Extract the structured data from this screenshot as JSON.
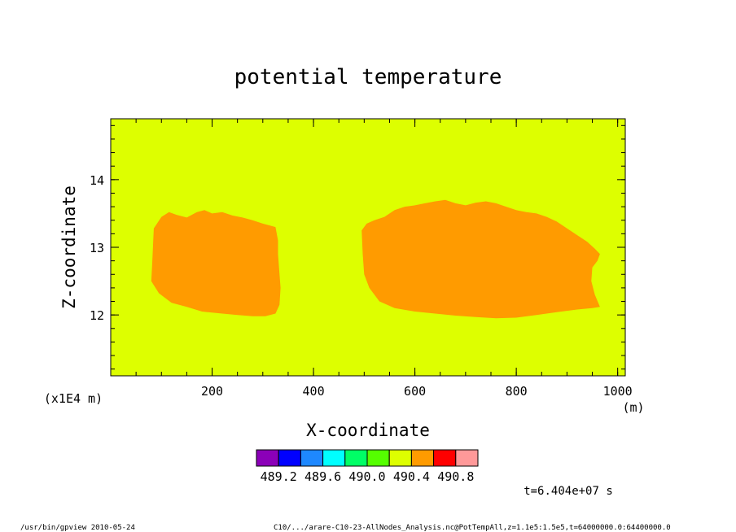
{
  "chart_data": {
    "type": "heatmap",
    "title": "potential temperature",
    "xlabel": "X-coordinate",
    "ylabel": "Z-coordinate",
    "x_unit": "(m)",
    "y_unit": "(x1E4 m)",
    "xlim": [
      0,
      1015
    ],
    "ylim": [
      11.1,
      14.9
    ],
    "x_ticks": [
      200,
      400,
      600,
      800,
      1000
    ],
    "x_tick_labels": [
      "200",
      "400",
      "600",
      "800",
      "1000"
    ],
    "y_ticks": [
      12,
      13,
      14
    ],
    "y_tick_labels": [
      "12",
      "13",
      "14"
    ],
    "background_value_range": [
      490.0,
      490.4
    ],
    "background_color": "#DDFF00",
    "regions": [
      {
        "value_range": [
          490.4,
          490.8
        ],
        "color": "#FF9B00",
        "outline": [
          [
            85,
            13.28
          ],
          [
            100,
            13.45
          ],
          [
            115,
            13.52
          ],
          [
            130,
            13.48
          ],
          [
            150,
            13.44
          ],
          [
            170,
            13.52
          ],
          [
            185,
            13.55
          ],
          [
            200,
            13.5
          ],
          [
            220,
            13.52
          ],
          [
            240,
            13.47
          ],
          [
            260,
            13.44
          ],
          [
            280,
            13.4
          ],
          [
            300,
            13.35
          ],
          [
            315,
            13.32
          ],
          [
            325,
            13.3
          ],
          [
            330,
            13.1
          ],
          [
            330,
            12.9
          ],
          [
            332,
            12.7
          ],
          [
            335,
            12.4
          ],
          [
            333,
            12.15
          ],
          [
            325,
            12.02
          ],
          [
            305,
            11.98
          ],
          [
            280,
            11.98
          ],
          [
            250,
            12.0
          ],
          [
            220,
            12.02
          ],
          [
            180,
            12.05
          ],
          [
            150,
            12.12
          ],
          [
            120,
            12.18
          ],
          [
            95,
            12.32
          ],
          [
            80,
            12.5
          ],
          [
            82,
            12.8
          ],
          [
            85,
            13.28
          ]
        ]
      },
      {
        "value_range": [
          490.4,
          490.8
        ],
        "color": "#FF9B00",
        "outline": [
          [
            495,
            13.25
          ],
          [
            505,
            13.35
          ],
          [
            520,
            13.4
          ],
          [
            540,
            13.45
          ],
          [
            560,
            13.55
          ],
          [
            580,
            13.6
          ],
          [
            600,
            13.62
          ],
          [
            620,
            13.65
          ],
          [
            640,
            13.68
          ],
          [
            660,
            13.7
          ],
          [
            680,
            13.65
          ],
          [
            700,
            13.62
          ],
          [
            720,
            13.66
          ],
          [
            740,
            13.68
          ],
          [
            760,
            13.65
          ],
          [
            780,
            13.6
          ],
          [
            800,
            13.55
          ],
          [
            820,
            13.52
          ],
          [
            840,
            13.5
          ],
          [
            860,
            13.45
          ],
          [
            880,
            13.38
          ],
          [
            900,
            13.28
          ],
          [
            920,
            13.18
          ],
          [
            940,
            13.08
          ],
          [
            955,
            12.98
          ],
          [
            965,
            12.9
          ],
          [
            960,
            12.8
          ],
          [
            950,
            12.7
          ],
          [
            948,
            12.5
          ],
          [
            955,
            12.3
          ],
          [
            965,
            12.12
          ],
          [
            950,
            12.1
          ],
          [
            920,
            12.08
          ],
          [
            880,
            12.04
          ],
          [
            840,
            12.0
          ],
          [
            800,
            11.96
          ],
          [
            760,
            11.95
          ],
          [
            720,
            11.97
          ],
          [
            680,
            11.99
          ],
          [
            640,
            12.02
          ],
          [
            600,
            12.05
          ],
          [
            560,
            12.1
          ],
          [
            530,
            12.2
          ],
          [
            510,
            12.4
          ],
          [
            500,
            12.6
          ],
          [
            497,
            12.9
          ],
          [
            495,
            13.25
          ]
        ]
      }
    ],
    "colorbar": {
      "colors": [
        "#8B00B8",
        "#0000FF",
        "#1E88FF",
        "#00FFFF",
        "#00FF66",
        "#55FF00",
        "#DDFF00",
        "#FF9B00",
        "#FF0000",
        "#FF9999"
      ],
      "tick_labels": [
        "489.2",
        "489.6",
        "490.0",
        "490.4",
        "490.8"
      ]
    },
    "time_label": "t=6.404e+07 s"
  },
  "footer": {
    "left": "/usr/bin/gpview  2010-05-24",
    "right": "C10/.../arare-C10-23-AllNodes_Analysis.nc@PotTempAll,z=1.1e5:1.5e5,t=64000000.0:64400000.0"
  }
}
